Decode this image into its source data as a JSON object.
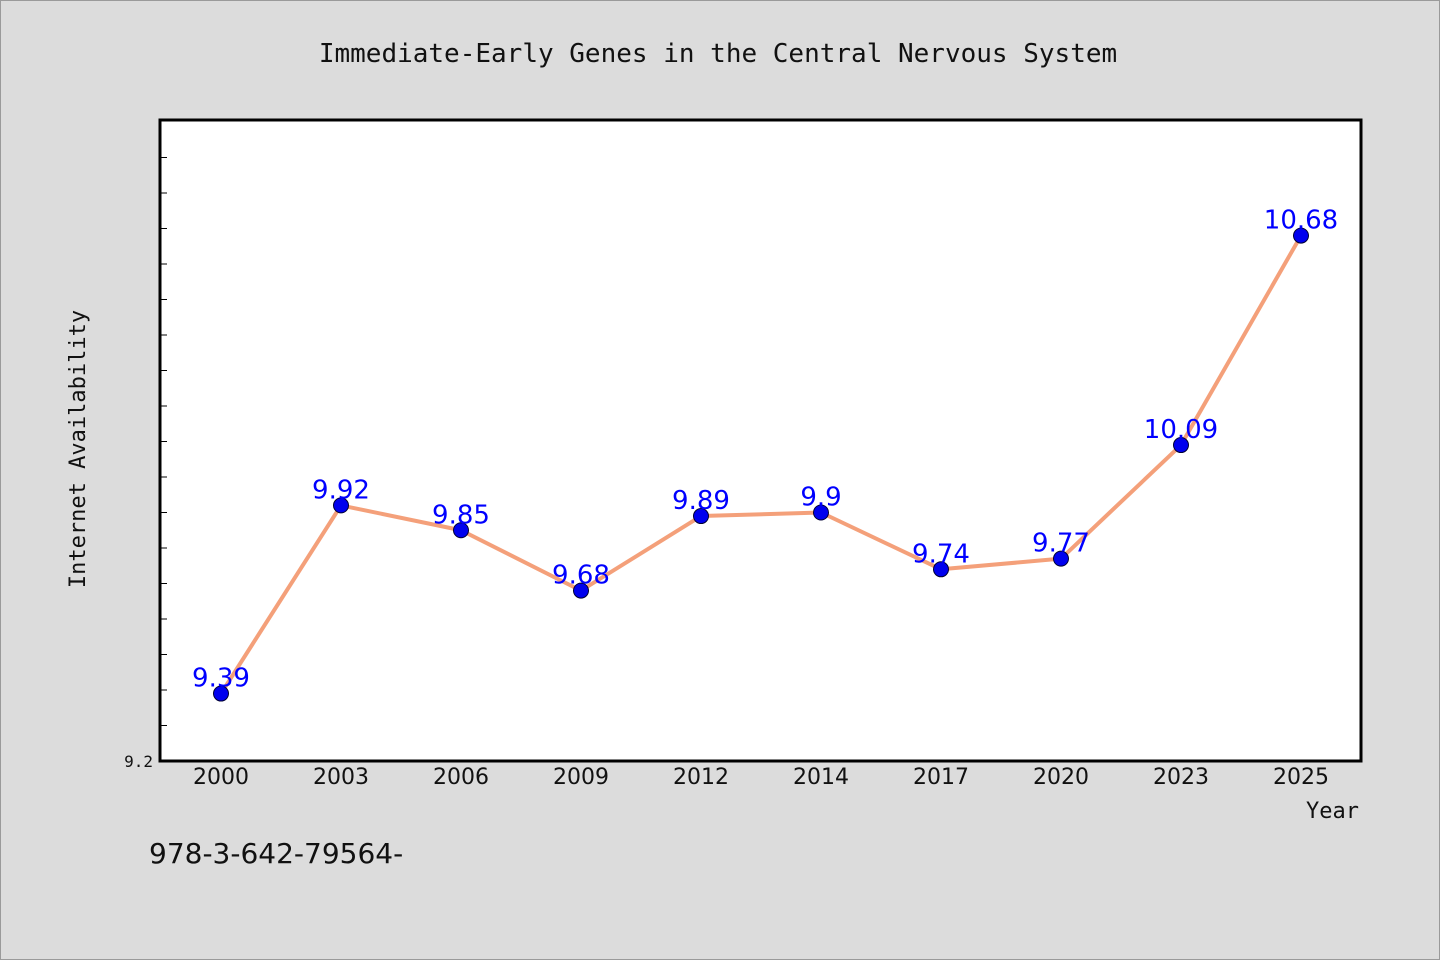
{
  "footer_text": "978-3-642-79564-",
  "colors": {
    "background": "#dcdcdc",
    "plot_background": "#ffffff",
    "line": "#f4a07a",
    "marker": "#0000ee",
    "data_label": "#0000ff"
  },
  "chart_data": {
    "type": "line",
    "title": "Immediate-Early Genes in the Central Nervous System",
    "xlabel": "Year",
    "ylabel": "Internet Availability",
    "categories": [
      "2000",
      "2003",
      "2006",
      "2009",
      "2012",
      "2014",
      "2017",
      "2020",
      "2023",
      "2025"
    ],
    "series": [
      {
        "values": [
          9.39,
          9.92,
          9.85,
          9.68,
          9.89,
          9.9,
          9.74,
          9.77,
          10.09,
          10.68
        ],
        "data_labels": [
          "9.39",
          "9.92",
          "9.85",
          "9.68",
          "9.89",
          "9.9",
          "9.74",
          "9.77",
          "10.09",
          "10.68"
        ]
      }
    ],
    "ylim": [
      9.2,
      11.0
    ],
    "y_tick_labels": [
      "9.2"
    ],
    "grid": false,
    "legend": "none"
  }
}
